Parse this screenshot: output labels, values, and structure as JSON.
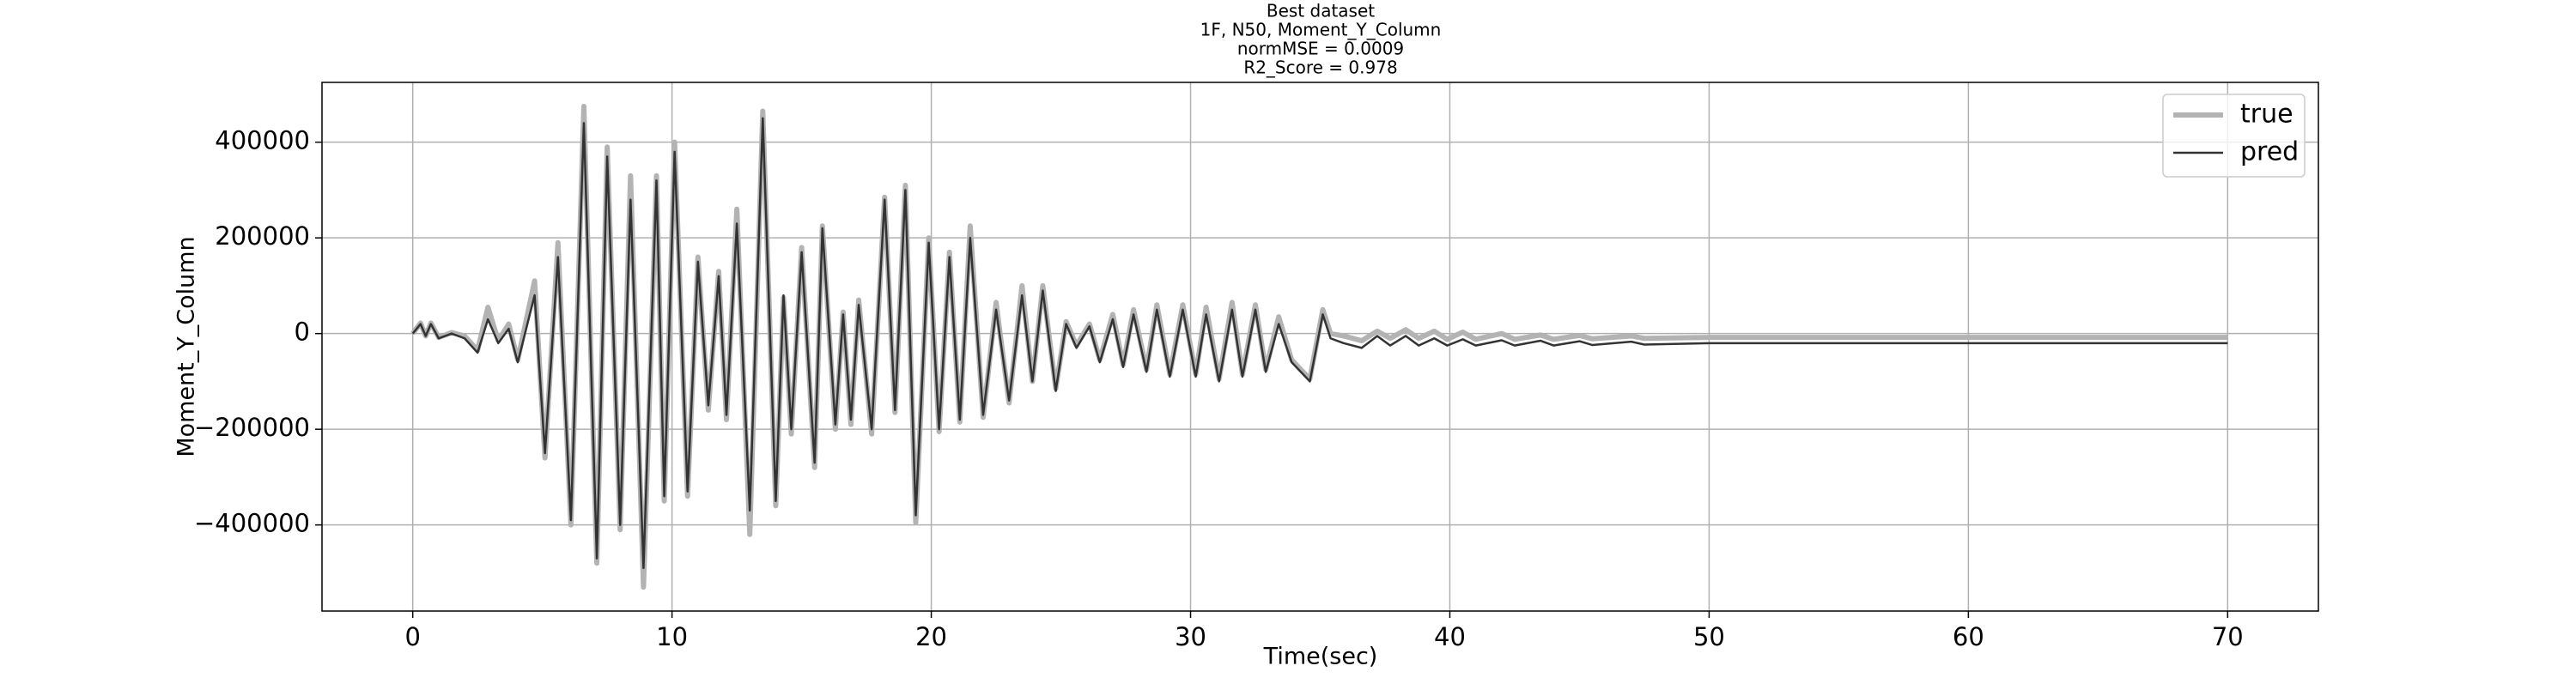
{
  "chart_data": {
    "type": "line",
    "title": "Best dataset",
    "subtitle": [
      "1F, N50, Moment_Y_Column",
      "normMSE = 0.0009",
      "R2_Score = 0.978"
    ],
    "x_label": "Time(sec)",
    "y_label": "Moment_Y_Column",
    "x": [
      0,
      0.3,
      0.5,
      0.7,
      1.0,
      1.5,
      2.0,
      2.5,
      2.9,
      3.3,
      3.7,
      4.05,
      4.7,
      5.1,
      5.6,
      6.1,
      6.6,
      7.1,
      7.5,
      8.0,
      8.4,
      8.9,
      9.4,
      9.7,
      10.1,
      10.6,
      11.0,
      11.4,
      11.8,
      12.1,
      12.5,
      13.0,
      13.5,
      14.0,
      14.3,
      14.6,
      15.0,
      15.5,
      15.8,
      16.3,
      16.6,
      16.9,
      17.2,
      17.7,
      18.2,
      18.6,
      19.0,
      19.4,
      19.9,
      20.3,
      20.7,
      21.1,
      21.5,
      22.0,
      22.5,
      23.0,
      23.5,
      23.9,
      24.3,
      24.8,
      25.2,
      25.6,
      26.1,
      26.5,
      27.0,
      27.4,
      27.8,
      28.3,
      28.7,
      29.2,
      29.7,
      30.2,
      30.6,
      31.1,
      31.6,
      32.0,
      32.5,
      32.9,
      33.4,
      33.9,
      34.6,
      35.1,
      35.4,
      35.9,
      36.6,
      37.2,
      37.7,
      38.3,
      38.8,
      39.4,
      39.9,
      40.5,
      41.0,
      42.0,
      42.5,
      43.5,
      44.0,
      45.0,
      45.5,
      47.0,
      47.5,
      50,
      55,
      60,
      65,
      70
    ],
    "series": [
      {
        "name": "true",
        "color": "#b3b3b3",
        "width": 6,
        "values": [
          0,
          22000,
          -5000,
          22000,
          -8000,
          2000,
          -5000,
          -35000,
          55000,
          -15000,
          20000,
          -55000,
          110000,
          -260000,
          190000,
          -400000,
          475000,
          -480000,
          390000,
          -410000,
          330000,
          -530000,
          330000,
          -350000,
          400000,
          -340000,
          160000,
          -160000,
          130000,
          -180000,
          260000,
          -420000,
          465000,
          -360000,
          75000,
          -210000,
          180000,
          -280000,
          225000,
          -200000,
          45000,
          -190000,
          70000,
          -210000,
          285000,
          -165000,
          310000,
          -395000,
          200000,
          -205000,
          170000,
          -185000,
          225000,
          -175000,
          65000,
          -145000,
          100000,
          -100000,
          100000,
          -115000,
          25000,
          -25000,
          20000,
          -55000,
          40000,
          -65000,
          50000,
          -75000,
          60000,
          -85000,
          60000,
          -85000,
          55000,
          -95000,
          65000,
          -85000,
          60000,
          -75000,
          35000,
          -55000,
          -95000,
          50000,
          0,
          -5000,
          -15000,
          5000,
          -10000,
          8000,
          -10000,
          5000,
          -12000,
          3000,
          -12000,
          0,
          -12000,
          -3000,
          -12000,
          -4000,
          -11000,
          -5000,
          -10000,
          -8000,
          -8000,
          -8000,
          -8000,
          -8000
        ]
      },
      {
        "name": "pred",
        "color": "#333333",
        "width": 2.5,
        "values": [
          0,
          20000,
          -5000,
          20000,
          -10000,
          0,
          -10000,
          -40000,
          30000,
          -20000,
          10000,
          -60000,
          80000,
          -250000,
          160000,
          -390000,
          440000,
          -470000,
          370000,
          -400000,
          280000,
          -490000,
          320000,
          -340000,
          380000,
          -330000,
          150000,
          -150000,
          120000,
          -170000,
          230000,
          -370000,
          450000,
          -350000,
          80000,
          -200000,
          170000,
          -270000,
          220000,
          -190000,
          40000,
          -180000,
          60000,
          -200000,
          280000,
          -160000,
          300000,
          -380000,
          190000,
          -200000,
          160000,
          -180000,
          200000,
          -170000,
          50000,
          -140000,
          80000,
          -100000,
          90000,
          -120000,
          20000,
          -30000,
          15000,
          -60000,
          30000,
          -70000,
          40000,
          -80000,
          50000,
          -90000,
          50000,
          -90000,
          40000,
          -100000,
          50000,
          -90000,
          50000,
          -80000,
          20000,
          -60000,
          -100000,
          40000,
          -10000,
          -20000,
          -30000,
          -5000,
          -25000,
          -5000,
          -25000,
          -10000,
          -25000,
          -12000,
          -25000,
          -14000,
          -25000,
          -15000,
          -25000,
          -16000,
          -24000,
          -17000,
          -23000,
          -20000,
          -20000,
          -20000,
          -20000,
          -20000
        ]
      }
    ],
    "xlim": [
      -3.5,
      73.5
    ],
    "ylim": [
      -580000,
      525000
    ],
    "xticks": [
      0,
      10,
      20,
      30,
      40,
      50,
      60,
      70
    ],
    "yticks": [
      {
        "value": -400000,
        "label": "−400000"
      },
      {
        "value": -200000,
        "label": "−200000"
      },
      0,
      200000,
      400000
    ],
    "grid": true,
    "legend": "upper right"
  }
}
